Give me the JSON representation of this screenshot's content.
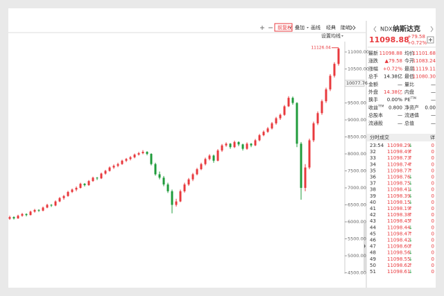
{
  "toolbar": {
    "items": [
      "前复权",
      "叠加",
      "画线",
      "经典",
      "陡峭"
    ],
    "ma_setting": "设置均线"
  },
  "chart_data": {
    "type": "candlestick",
    "up_color": "#e8393d",
    "down_color": "#1f9b3b",
    "open": [
      6090,
      6140,
      6100,
      6180,
      6230,
      6200,
      6300,
      6350,
      6330,
      6420,
      6500,
      6480,
      6600,
      6700,
      6760,
      6880,
      6950,
      7000,
      7120,
      7080,
      7200,
      7300,
      7280,
      7420,
      7500,
      7600,
      7650,
      7700,
      7800,
      7850,
      7900,
      7980,
      8020,
      8060,
      8000,
      7700,
      7400,
      7300,
      7100,
      6900,
      6500,
      6600,
      6900,
      7100,
      7250,
      7400,
      7550,
      7700,
      7850,
      7950,
      7800,
      8100,
      8250,
      8300,
      8200,
      8350,
      8280,
      8150,
      8300,
      8250,
      8400,
      8550,
      8650,
      8750,
      8900,
      9050,
      9150,
      9400,
      9650,
      9500,
      8300,
      7000,
      7600,
      8400,
      8900,
      9200,
      9550,
      9900,
      10300,
      10650
    ],
    "high": [
      6180,
      6160,
      6210,
      6260,
      6250,
      6330,
      6380,
      6370,
      6450,
      6530,
      6520,
      6630,
      6730,
      6790,
      6910,
      6980,
      7040,
      7150,
      7140,
      7230,
      7330,
      7320,
      7450,
      7530,
      7630,
      7690,
      7740,
      7830,
      7880,
      7940,
      8010,
      8060,
      8110,
      8080,
      8020,
      7740,
      7480,
      7350,
      7150,
      6950,
      6680,
      6950,
      7150,
      7290,
      7440,
      7590,
      7740,
      7890,
      7990,
      7980,
      8140,
      8290,
      8340,
      8320,
      8390,
      8370,
      8300,
      8340,
      8320,
      8440,
      8590,
      8690,
      8790,
      8940,
      9090,
      9190,
      9440,
      9700,
      9690,
      9520,
      8350,
      7700,
      8450,
      8950,
      9250,
      9600,
      9950,
      10350,
      10700,
      11126.04
    ],
    "low": [
      6060,
      6070,
      6090,
      6150,
      6160,
      6190,
      6270,
      6290,
      6310,
      6400,
      6440,
      6460,
      6580,
      6650,
      6740,
      6850,
      6900,
      6980,
      7040,
      7060,
      7180,
      7230,
      7260,
      7390,
      7480,
      7560,
      7610,
      7680,
      7760,
      7810,
      7870,
      7950,
      7990,
      7960,
      7660,
      7360,
      7250,
      7050,
      6850,
      6250,
      6450,
      6580,
      6860,
      7060,
      7200,
      7370,
      7520,
      7660,
      7810,
      7740,
      7780,
      8060,
      8210,
      8150,
      8170,
      8230,
      8100,
      8120,
      8200,
      8230,
      8370,
      8520,
      8620,
      8720,
      8860,
      9000,
      9120,
      9380,
      9450,
      8200,
      6650,
      6900,
      7550,
      8350,
      8850,
      9150,
      9500,
      9850,
      10250,
      10600
    ],
    "close": [
      6140,
      6100,
      6180,
      6230,
      6200,
      6300,
      6350,
      6330,
      6420,
      6500,
      6480,
      6600,
      6700,
      6760,
      6880,
      6950,
      7000,
      7120,
      7080,
      7200,
      7300,
      7280,
      7420,
      7500,
      7600,
      7650,
      7700,
      7800,
      7850,
      7900,
      7980,
      8020,
      8060,
      8000,
      7700,
      7400,
      7300,
      7100,
      6900,
      6500,
      6600,
      6900,
      7100,
      7250,
      7400,
      7550,
      7700,
      7850,
      7950,
      7800,
      8100,
      8250,
      8300,
      8200,
      8350,
      8280,
      8150,
      8300,
      8250,
      8400,
      8550,
      8650,
      8750,
      8900,
      9050,
      9150,
      9400,
      9650,
      9500,
      8300,
      7000,
      7600,
      8400,
      8900,
      9200,
      9550,
      9900,
      10300,
      10650,
      11098.88
    ],
    "ylim": [
      4470,
      11306
    ],
    "yticks": [
      {
        "value": 11000,
        "label": "11000.00"
      },
      {
        "value": 10500,
        "label": "10500.00"
      },
      {
        "value": 9500,
        "label": "9500.00"
      },
      {
        "value": 9000,
        "label": "9000.00"
      },
      {
        "value": 8500,
        "label": "8500.00"
      },
      {
        "value": 8000,
        "label": "8000.00"
      },
      {
        "value": 7500,
        "label": "7500.00"
      },
      {
        "value": 7000,
        "label": "7000.00"
      },
      {
        "value": 6500,
        "label": "6500.00"
      },
      {
        "value": 6000,
        "label": "6000.00"
      },
      {
        "value": 5500,
        "label": "5500.00"
      },
      {
        "value": 5000,
        "label": "5000.00"
      },
      {
        "value": 4500,
        "label": "4500.00"
      }
    ],
    "marker": {
      "value": 10077.76,
      "label": "10077.76"
    },
    "max_annotation": {
      "value": 11126.04,
      "label": "11126.04"
    }
  },
  "quote": {
    "code": "NDX",
    "name": "纳斯达克",
    "price": "11098.88",
    "change": "+79.58",
    "change_pct": "+0.72%",
    "rows": [
      {
        "k1": "最新",
        "v1": "11098.88",
        "c1": "#e8393d",
        "k2": "均价",
        "v2": "11101.68",
        "c2": "#e8393d"
      },
      {
        "k1": "涨跌",
        "v1": "▲79.58",
        "c1": "#e8393d",
        "k2": "今开",
        "v2": "11083.24",
        "c2": "#e8393d"
      },
      {
        "k1": "涨幅",
        "v1": "+0.72%",
        "c1": "#e8393d",
        "k2": "最高",
        "v2": "11119.11",
        "c2": "#e8393d"
      },
      {
        "k1": "总手",
        "v1": "14.38亿",
        "c1": "#222",
        "k2": "最低",
        "v2": "11080.30",
        "c2": "#e8393d"
      },
      {
        "k1": "金额",
        "v1": "—",
        "c1": "#222",
        "k2": "量比",
        "v2": "—",
        "c2": "#222"
      },
      {
        "k1": "外盘",
        "v1": "14.38亿",
        "c1": "#e8393d",
        "k2": "内盘",
        "v2": "—",
        "c2": "#222"
      },
      {
        "k1": "换手",
        "v1": "0.00%",
        "c1": "#222",
        "k2": "PE",
        "k2sup": "TTM",
        "v2": "—",
        "c2": "#222"
      },
      {
        "k1": "收益",
        "k1sup": "TTM",
        "v1": "0.800",
        "c1": "#222",
        "k2": "净资产",
        "v2": "0.00",
        "c2": "#222"
      },
      {
        "k1": "总股本",
        "v1": "—",
        "c1": "#222",
        "k2": "流通值",
        "v2": "—",
        "c2": "#222"
      },
      {
        "k1": "流通股",
        "v1": "—",
        "c1": "#222",
        "k2": "总值",
        "v2": "—",
        "c2": "#222"
      }
    ]
  },
  "trades": {
    "title": "分时成交",
    "detail": "详",
    "rows": [
      {
        "time": "23:54",
        "price": "11098.29",
        "volume": "0",
        "arrow": "↓",
        "color": "#1f9b3b"
      },
      {
        "time": "32",
        "price": "11098.49",
        "volume": "0",
        "arrow": "↑",
        "color": "#e8393d"
      },
      {
        "time": "33",
        "price": "11098.73",
        "volume": "0",
        "arrow": "↑",
        "color": "#e8393d"
      },
      {
        "time": "34",
        "price": "11098.74",
        "volume": "0",
        "arrow": "↑",
        "color": "#e8393d"
      },
      {
        "time": "35",
        "price": "11098.77",
        "volume": "0",
        "arrow": "↑",
        "color": "#e8393d"
      },
      {
        "time": "36",
        "price": "11098.76",
        "volume": "0",
        "arrow": "↓",
        "color": "#1f9b3b"
      },
      {
        "time": "37",
        "price": "11098.75",
        "volume": "0",
        "arrow": "↓",
        "color": "#1f9b3b"
      },
      {
        "time": "38",
        "price": "11098.41",
        "volume": "0",
        "arrow": "↓",
        "color": "#1f9b3b"
      },
      {
        "time": "39",
        "price": "11098.39",
        "volume": "0",
        "arrow": "↓",
        "color": "#1f9b3b"
      },
      {
        "time": "40",
        "price": "11098.15",
        "volume": "0",
        "arrow": "↓",
        "color": "#1f9b3b"
      },
      {
        "time": "41",
        "price": "11098.19",
        "volume": "0",
        "arrow": "↑",
        "color": "#e8393d"
      },
      {
        "time": "42",
        "price": "11098.38",
        "volume": "0",
        "arrow": "↑",
        "color": "#e8393d"
      },
      {
        "time": "43",
        "price": "11098.45",
        "volume": "0",
        "arrow": "↑",
        "color": "#e8393d"
      },
      {
        "time": "44",
        "price": "11098.44",
        "volume": "0",
        "arrow": "↓",
        "color": "#1f9b3b"
      },
      {
        "time": "45",
        "price": "11098.47",
        "volume": "0",
        "arrow": "↑",
        "color": "#e8393d"
      },
      {
        "time": "46",
        "price": "11098.42",
        "volume": "0",
        "arrow": "↓",
        "color": "#1f9b3b"
      },
      {
        "time": "47",
        "price": "11098.60",
        "volume": "0",
        "arrow": "↑",
        "color": "#e8393d"
      },
      {
        "time": "48",
        "price": "11098.56",
        "volume": "0",
        "arrow": "↓",
        "color": "#1f9b3b"
      },
      {
        "time": "49",
        "price": "11098.55",
        "volume": "0",
        "arrow": "↓",
        "color": "#1f9b3b"
      },
      {
        "time": "50",
        "price": "11098.62",
        "volume": "0",
        "arrow": "↑",
        "color": "#e8393d"
      },
      {
        "time": "51",
        "price": "11098.61",
        "volume": "0",
        "arrow": "↓",
        "color": "#1f9b3b"
      }
    ]
  }
}
